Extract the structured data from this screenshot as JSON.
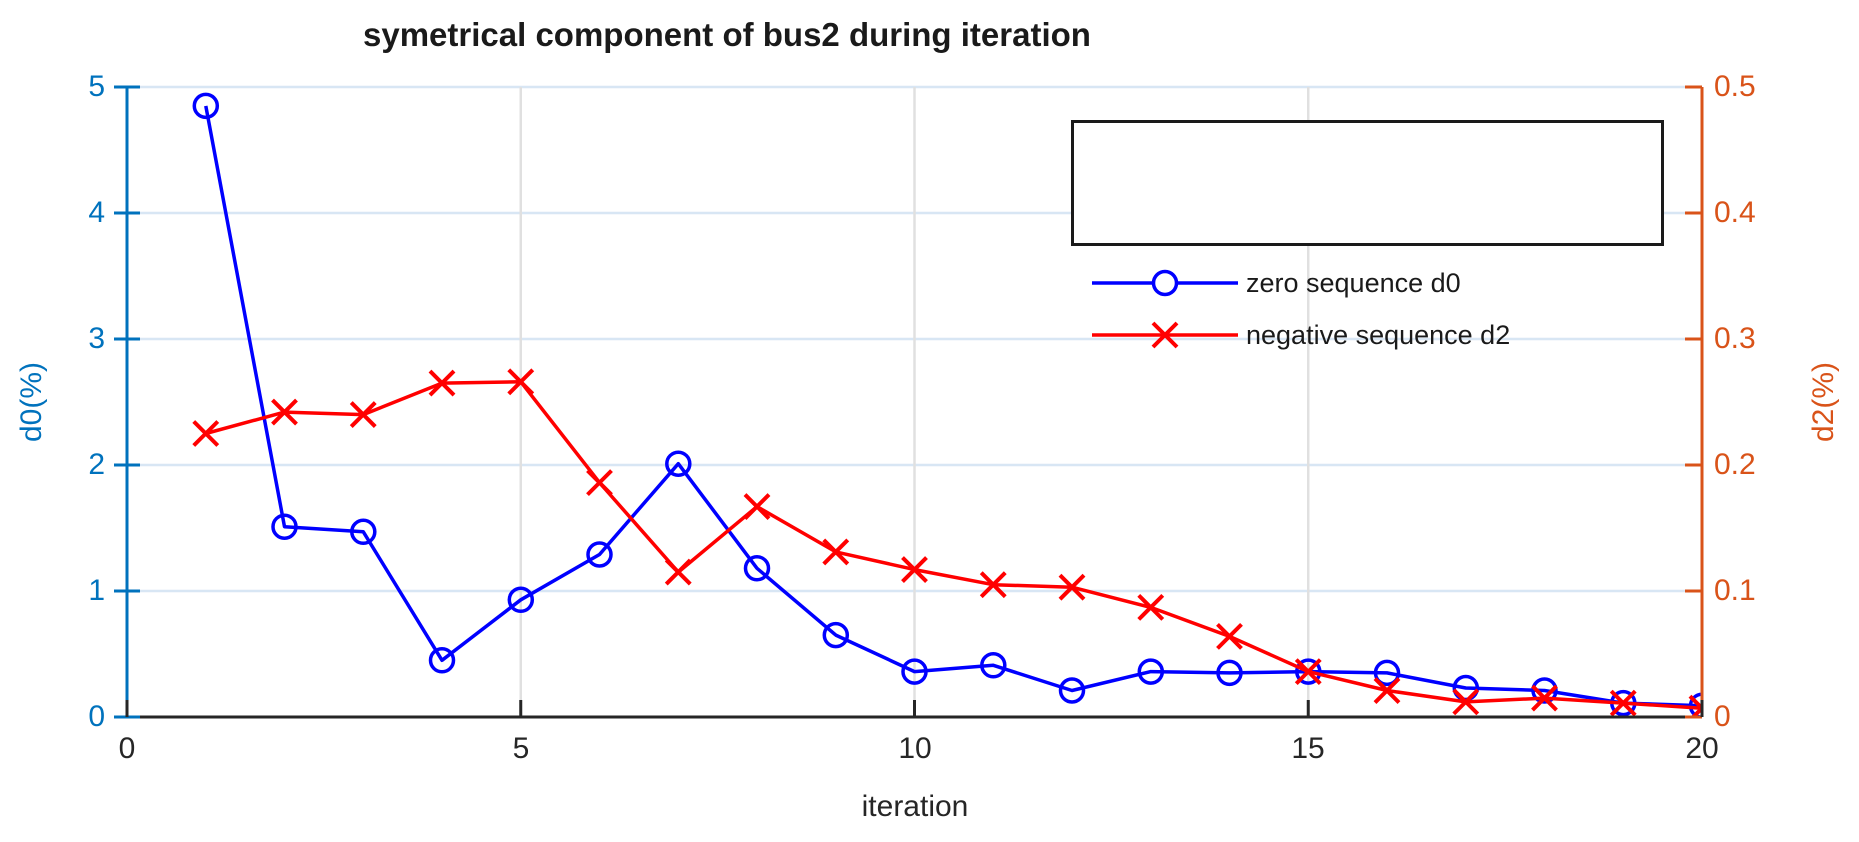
{
  "title": "symetrical component of bus2 during iteration",
  "axes": {
    "x": {
      "label": "iteration",
      "min": 0,
      "max": 20,
      "ticks": [
        "0",
        "5",
        "10",
        "15",
        "20"
      ]
    },
    "y_left": {
      "label": "d0(%)",
      "min": 0,
      "max": 5,
      "ticks": [
        "0",
        "1",
        "2",
        "3",
        "4",
        "5"
      ],
      "color": "#0072BD"
    },
    "y_right": {
      "label": "d2(%)",
      "min": 0,
      "max": 0.5,
      "ticks": [
        "0",
        "0.1",
        "0.2",
        "0.3",
        "0.4",
        "0.5"
      ],
      "color": "#D95319"
    }
  },
  "colors": {
    "grid_horizontal": "#D8E6F4",
    "grid_vertical": "#E0E0E0",
    "x_axis": "#262626",
    "series_blue": "#0000FF",
    "series_red": "#FF0000"
  },
  "legend": {
    "position": "top-right",
    "items": [
      {
        "label": "zero sequence d0",
        "color": "#0000FF",
        "marker": "circle"
      },
      {
        "label": "negative sequence d2",
        "color": "#FF0000",
        "marker": "x"
      }
    ]
  },
  "chart_data": {
    "type": "line",
    "title": "symetrical component of bus2 during iteration",
    "xlabel": "iteration",
    "ylabel_left": "d0(%)",
    "ylabel_right": "d2(%)",
    "xlim": [
      0,
      20
    ],
    "ylim_left": [
      0,
      5
    ],
    "ylim_right": [
      0,
      0.5
    ],
    "grid": true,
    "legend_position": "top-right",
    "x": [
      1,
      2,
      3,
      4,
      5,
      6,
      7,
      8,
      9,
      10,
      11,
      12,
      13,
      14,
      15,
      16,
      17,
      18,
      19,
      20
    ],
    "series": [
      {
        "name": "zero sequence d0",
        "axis": "left",
        "marker": "circle",
        "color": "#0000FF",
        "values": [
          4.85,
          1.51,
          1.47,
          0.45,
          0.93,
          1.29,
          2.01,
          1.18,
          0.65,
          0.36,
          0.41,
          0.21,
          0.36,
          0.35,
          0.36,
          0.35,
          0.23,
          0.21,
          0.11,
          0.09
        ]
      },
      {
        "name": "negative sequence d2",
        "axis": "right",
        "marker": "x",
        "color": "#FF0000",
        "values": [
          0.225,
          0.242,
          0.24,
          0.265,
          0.266,
          0.186,
          0.115,
          0.167,
          0.131,
          0.117,
          0.105,
          0.103,
          0.087,
          0.064,
          0.036,
          0.021,
          0.012,
          0.015,
          0.011,
          0.007
        ]
      }
    ]
  }
}
